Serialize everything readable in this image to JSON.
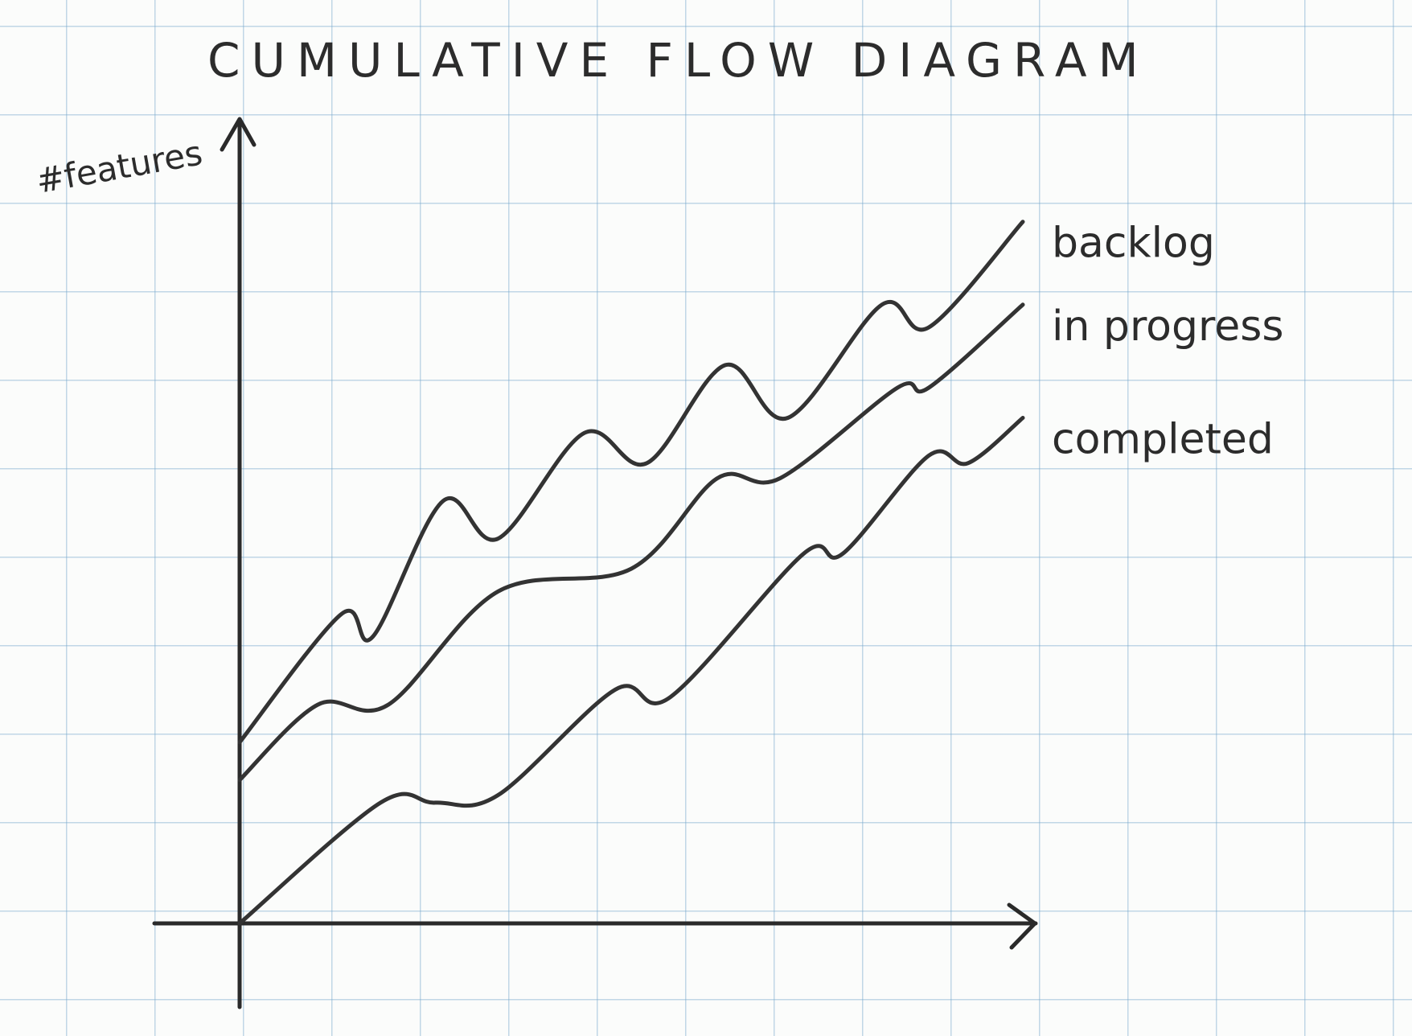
{
  "chart_data": {
    "type": "line",
    "title": "CUMULATIVE FLOW DIAGRAM",
    "ylabel": "#features",
    "xlabel": "",
    "grid": true,
    "legend": "right-end-labels",
    "xlim": [
      0,
      1
    ],
    "ylim": [
      0,
      1
    ],
    "series": [
      {
        "name": "backlog",
        "x": [
          0,
          0.13,
          0.17,
          0.26,
          0.33,
          0.44,
          0.52,
          0.62,
          0.7,
          0.82,
          0.88,
          1.0
        ],
        "y": [
          0.24,
          0.41,
          0.38,
          0.56,
          0.51,
          0.65,
          0.61,
          0.74,
          0.67,
          0.82,
          0.79,
          0.93
        ]
      },
      {
        "name": "in progress",
        "x": [
          0,
          0.1,
          0.19,
          0.33,
          0.5,
          0.61,
          0.69,
          0.84,
          0.88,
          1.0
        ],
        "y": [
          0.19,
          0.29,
          0.29,
          0.44,
          0.47,
          0.59,
          0.59,
          0.71,
          0.71,
          0.82
        ]
      },
      {
        "name": "completed",
        "x": [
          0,
          0.18,
          0.25,
          0.33,
          0.48,
          0.55,
          0.72,
          0.77,
          0.88,
          0.93,
          1.0
        ],
        "y": [
          0.0,
          0.16,
          0.16,
          0.17,
          0.31,
          0.3,
          0.49,
          0.49,
          0.62,
          0.61,
          0.67
        ]
      }
    ]
  }
}
